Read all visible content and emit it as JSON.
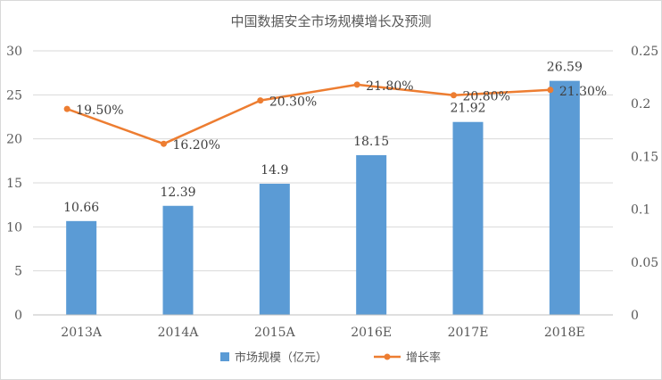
{
  "chart_data": {
    "type": "bar",
    "title": "中国数据安全市场规模增长及预测",
    "categories": [
      "2013A",
      "2014A",
      "2015A",
      "2016E",
      "2017E",
      "2018E"
    ],
    "series": [
      {
        "name": "市场规模（亿元）",
        "type": "bar",
        "axis": "left",
        "values": [
          10.66,
          12.39,
          14.9,
          18.15,
          21.92,
          26.59
        ],
        "labels": [
          "10.66",
          "12.39",
          "14.9",
          "18.15",
          "21.92",
          "26.59"
        ],
        "color": "#5b9bd5"
      },
      {
        "name": "增长率",
        "type": "line",
        "axis": "right",
        "values": [
          0.195,
          0.162,
          0.203,
          0.218,
          0.208,
          0.213
        ],
        "labels": [
          "19.50%",
          "16.20%",
          "20.30%",
          "21.80%",
          "20.80%",
          "21.30%"
        ],
        "color": "#ed7d31"
      }
    ],
    "y_left": {
      "ylim": [
        0,
        30
      ],
      "ticks": [
        "0",
        "5",
        "10",
        "15",
        "20",
        "25",
        "30"
      ]
    },
    "y_right": {
      "ylim": [
        0,
        0.25
      ],
      "ticks": [
        "0",
        "0.05",
        "0.1",
        "0.15",
        "0.2",
        "0.25"
      ]
    },
    "grid": true,
    "legend": "bottom"
  }
}
